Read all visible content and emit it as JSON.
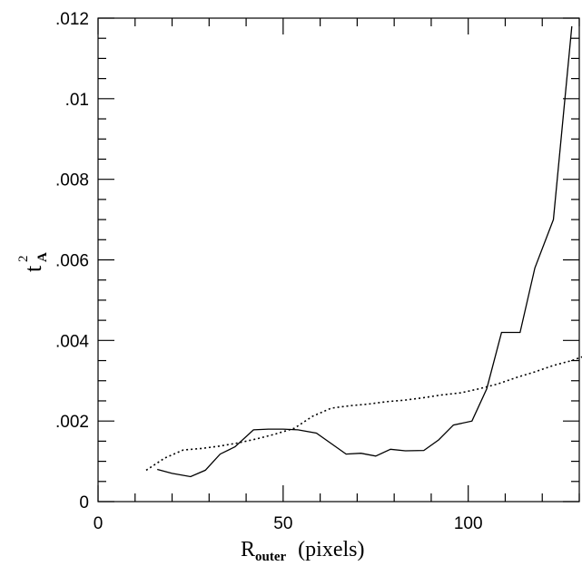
{
  "chart_data": {
    "type": "line",
    "xlabel": {
      "main": "R",
      "sub": "outer",
      "rest": "(pixels)"
    },
    "ylabel": {
      "main": "t",
      "sup": "2",
      "sub": "A"
    },
    "xlim": [
      0,
      130
    ],
    "ylim": [
      0,
      0.012
    ],
    "x_ticks": [
      {
        "value": 0,
        "label": "0"
      },
      {
        "value": 50,
        "label": "50"
      },
      {
        "value": 100,
        "label": "100"
      }
    ],
    "y_ticks": [
      {
        "value": 0,
        "label": "0"
      },
      {
        "value": 0.002,
        "label": ".002"
      },
      {
        "value": 0.004,
        "label": ".004"
      },
      {
        "value": 0.006,
        "label": ".006"
      },
      {
        "value": 0.008,
        "label": ".008"
      },
      {
        "value": 0.01,
        "label": ".01"
      },
      {
        "value": 0.012,
        "label": ".012"
      }
    ],
    "x_minor_step": 10,
    "y_minor_step": 0.0005,
    "grid": false,
    "series": [
      {
        "style": "solid",
        "color": "#000000",
        "x": [
          16,
          20,
          25,
          29,
          33,
          37,
          42,
          46,
          50,
          54,
          59,
          63,
          67,
          71,
          75,
          79,
          83,
          88,
          92,
          96,
          101,
          105,
          109,
          114,
          118,
          123,
          128
        ],
        "y": [
          0.0008,
          0.0007,
          0.00062,
          0.00078,
          0.00118,
          0.00136,
          0.00178,
          0.0018,
          0.0018,
          0.00178,
          0.0017,
          0.00144,
          0.00118,
          0.0012,
          0.00113,
          0.0013,
          0.00126,
          0.00127,
          0.00153,
          0.0019,
          0.002,
          0.0028,
          0.0042,
          0.0042,
          0.0058,
          0.007,
          0.0118
        ]
      },
      {
        "style": "dotted",
        "color": "#000000",
        "x": [
          13,
          18,
          23,
          28,
          33,
          38,
          43,
          48,
          53,
          58,
          63,
          68,
          73,
          78,
          83,
          88,
          93,
          98,
          103,
          108,
          113,
          118,
          123,
          128,
          131
        ],
        "y": [
          0.00078,
          0.00108,
          0.00128,
          0.00132,
          0.00138,
          0.00146,
          0.00156,
          0.00168,
          0.00182,
          0.00212,
          0.00232,
          0.00238,
          0.00242,
          0.00248,
          0.00252,
          0.00258,
          0.00265,
          0.0027,
          0.0028,
          0.00292,
          0.00308,
          0.00322,
          0.00338,
          0.0035,
          0.0036
        ]
      }
    ]
  }
}
